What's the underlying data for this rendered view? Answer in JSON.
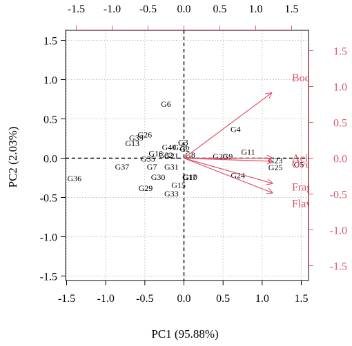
{
  "chart_data": {
    "type": "scatter",
    "subtype": "biplot",
    "xlabel": "PC1 (95.88%)",
    "ylabel": "PC2 (2.03%)",
    "xlim": [
      -1.5,
      1.5
    ],
    "ylim": [
      -1.5,
      1.5
    ],
    "x_ticks": [
      "-1.5",
      "-1.0",
      "-0.5",
      "0.0",
      "0.5",
      "1.0",
      "1.5"
    ],
    "y_ticks": [
      "-1.5",
      "-1.0",
      "-0.5",
      "0.0",
      "0.5",
      "1.0",
      "1.5"
    ],
    "top_ticks": [
      "-1.5",
      "-1.0",
      "-0.5",
      "0.0",
      "0.5",
      "1.0",
      "1.5"
    ],
    "right_ticks": [
      "-1.5",
      "-1.0",
      "-0.5",
      "0.0",
      "0.5",
      "1.0",
      "1.5"
    ],
    "grid": true,
    "reference_lines": [
      0,
      0
    ],
    "colors": {
      "scores": "#000000",
      "loadings": "#df536b",
      "grid": "#bebebe"
    },
    "points": [
      {
        "label": "G6",
        "x": -0.23,
        "y": 0.69
      },
      {
        "label": "G26",
        "x": -0.5,
        "y": 0.3
      },
      {
        "label": "G39",
        "x": -0.61,
        "y": 0.26
      },
      {
        "label": "G13",
        "x": -0.66,
        "y": 0.19
      },
      {
        "label": "G3",
        "x": -0.01,
        "y": 0.2
      },
      {
        "label": "G40",
        "x": -0.19,
        "y": 0.14
      },
      {
        "label": "G28",
        "x": -0.05,
        "y": 0.14
      },
      {
        "label": "G2",
        "x": 0.01,
        "y": 0.12
      },
      {
        "label": "G8",
        "x": 0.08,
        "y": 0.04
      },
      {
        "label": "G16",
        "x": -0.36,
        "y": 0.06
      },
      {
        "label": "G21",
        "x": -0.16,
        "y": 0.03
      },
      {
        "label": "G32",
        "x": -0.23,
        "y": 0.04
      },
      {
        "label": "G35",
        "x": -0.46,
        "y": -0.01
      },
      {
        "label": "G37",
        "x": -0.79,
        "y": -0.11
      },
      {
        "label": "G7",
        "x": -0.41,
        "y": -0.11
      },
      {
        "label": "G31",
        "x": -0.16,
        "y": -0.11
      },
      {
        "label": "G36",
        "x": -1.4,
        "y": -0.26
      },
      {
        "label": "G30",
        "x": -0.33,
        "y": -0.24
      },
      {
        "label": "G10",
        "x": 0.08,
        "y": -0.24
      },
      {
        "label": "G17",
        "x": 0.07,
        "y": -0.24
      },
      {
        "label": "G15",
        "x": -0.07,
        "y": -0.34
      },
      {
        "label": "G29",
        "x": -0.49,
        "y": -0.38
      },
      {
        "label": "G33",
        "x": -0.16,
        "y": -0.45
      },
      {
        "label": "G4",
        "x": 0.66,
        "y": 0.37
      },
      {
        "label": "G11",
        "x": 0.82,
        "y": 0.08
      },
      {
        "label": "G20",
        "x": 0.46,
        "y": 0.02
      },
      {
        "label": "G9",
        "x": 0.56,
        "y": 0.02
      },
      {
        "label": "G24",
        "x": 0.69,
        "y": -0.22
      },
      {
        "label": "G23",
        "x": 1.17,
        "y": -0.03
      },
      {
        "label": "G25",
        "x": 1.17,
        "y": -0.12
      },
      {
        "label": "G5",
        "x": 1.47,
        "y": -0.08
      }
    ],
    "loadings": [
      {
        "label": "Body",
        "x": 1.12,
        "y": 0.83
      },
      {
        "label": "Acidity",
        "x": 1.13,
        "y": 0.0
      },
      {
        "label": "Overall",
        "x": 1.13,
        "y": -0.04
      },
      {
        "label": "Fragrance",
        "x": 1.13,
        "y": -0.32
      },
      {
        "label": "Flavor",
        "x": 1.13,
        "y": -0.44
      }
    ],
    "loading_display": [
      {
        "label": "Body",
        "text": "Body"
      },
      {
        "label": "Acidity",
        "text": "Acidity"
      },
      {
        "label": "Overall",
        "text": "Overall_sc"
      },
      {
        "label": "Fragrance",
        "text": "Fragrance"
      },
      {
        "label": "Flavor",
        "text": "Flavor"
      }
    ]
  }
}
